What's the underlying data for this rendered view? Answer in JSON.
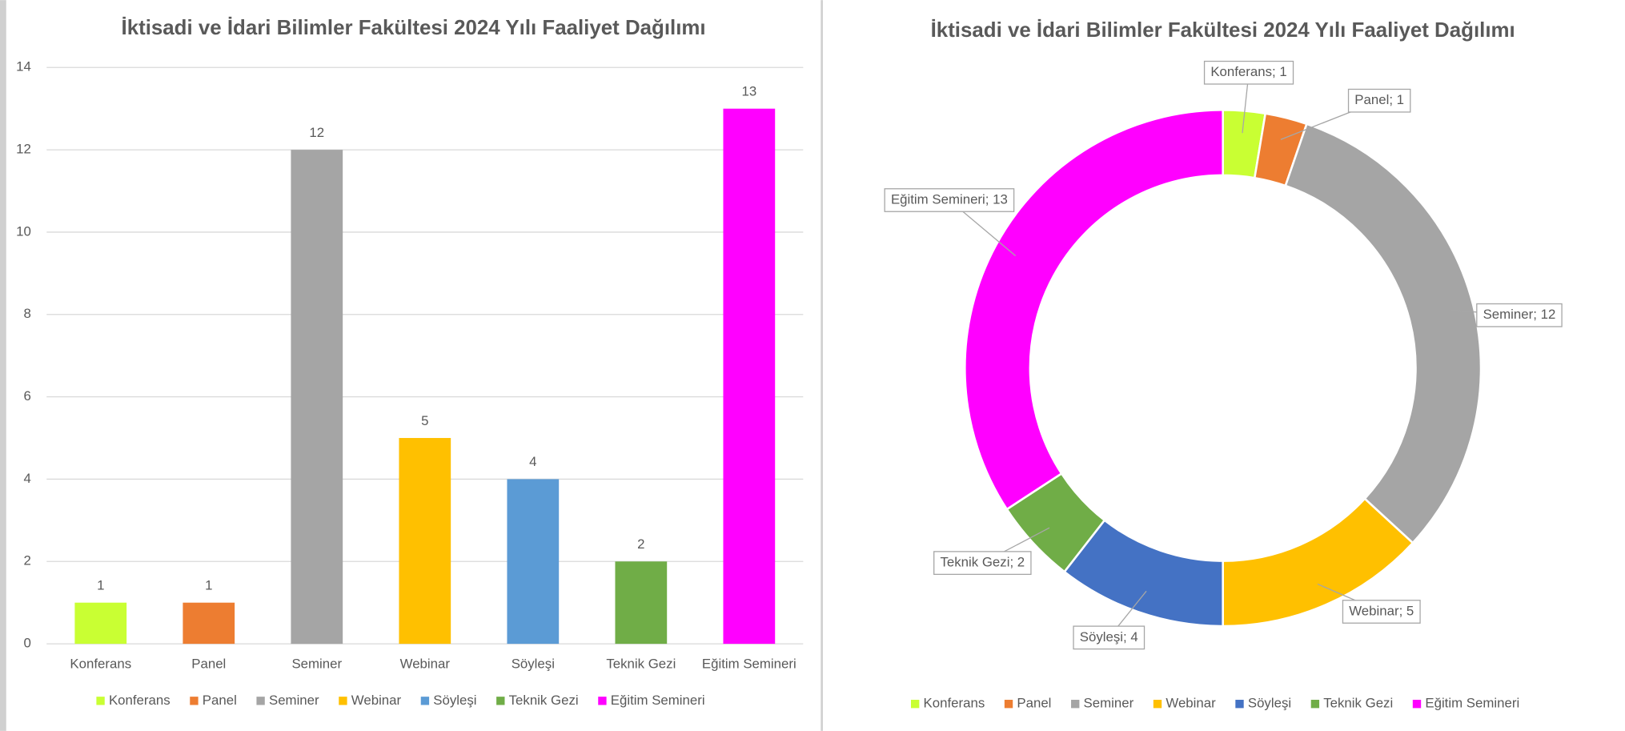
{
  "chart_data": [
    {
      "type": "bar",
      "title": "İktisadi ve İdari Bilimler Fakültesi 2024 Yılı Faaliyet Dağılımı",
      "categories": [
        "Konferans",
        "Panel",
        "Seminer",
        "Webinar",
        "Söyleşi",
        "Teknik Gezi",
        "Eğitim Semineri"
      ],
      "values": [
        1,
        1,
        12,
        5,
        4,
        2,
        13
      ],
      "colors": [
        "#c9ff33",
        "#ed7d31",
        "#a5a5a5",
        "#ffc000",
        "#5b9bd5",
        "#70ad47",
        "#ff00ff"
      ],
      "ylim": [
        0,
        14
      ],
      "yticks": [
        0,
        2,
        4,
        6,
        8,
        10,
        12,
        14
      ],
      "grid": true,
      "legend": "bottom"
    },
    {
      "type": "donut",
      "title": "İktisadi ve İdari Bilimler Fakültesi 2024 Yılı Faaliyet Dağılımı",
      "categories": [
        "Konferans",
        "Panel",
        "Seminer",
        "Webinar",
        "Söyleşi",
        "Teknik Gezi",
        "Eğitim Semineri"
      ],
      "values": [
        1,
        1,
        12,
        5,
        4,
        2,
        13
      ],
      "value_labels": [
        "Konferans; 1",
        "Panel; 1",
        "Seminer; 12",
        "Webinar; 5",
        "Söyleşi; 4",
        "Teknik Gezi; 2",
        "Eğitim Semineri; 13"
      ],
      "colors": [
        "#c9ff33",
        "#ed7d31",
        "#a5a5a5",
        "#ffc000",
        "#4472c4",
        "#70ad47",
        "#ff00ff"
      ],
      "legend": "bottom"
    }
  ]
}
